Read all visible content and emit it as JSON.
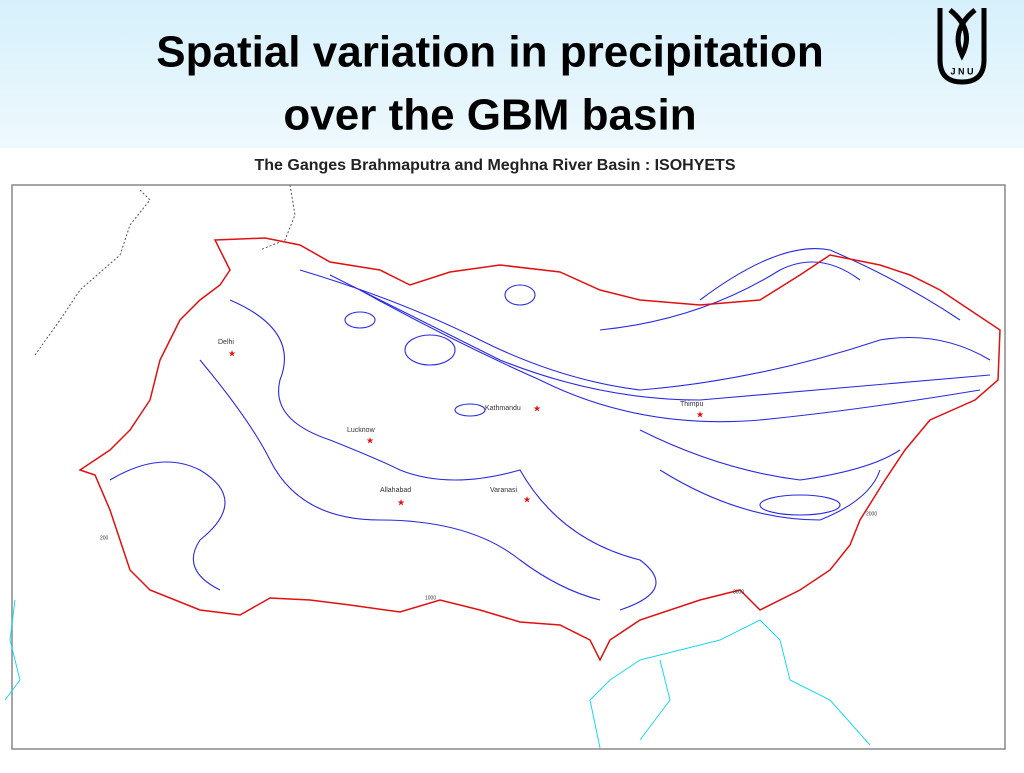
{
  "header": {
    "title": [
      "Spatial variation in precipitation",
      "over the GBM basin"
    ],
    "logo": "J N U"
  },
  "map": {
    "title": "The Ganges Brahmaputra and Meghna River Basin : ISOHYETS",
    "cities": [
      "Delhi",
      "Lucknow",
      "Allahabad",
      "Varanasi",
      "Kathmandu",
      "Thimpu"
    ],
    "contour_labels": [
      "200",
      "1000",
      "2000",
      "3000"
    ]
  }
}
